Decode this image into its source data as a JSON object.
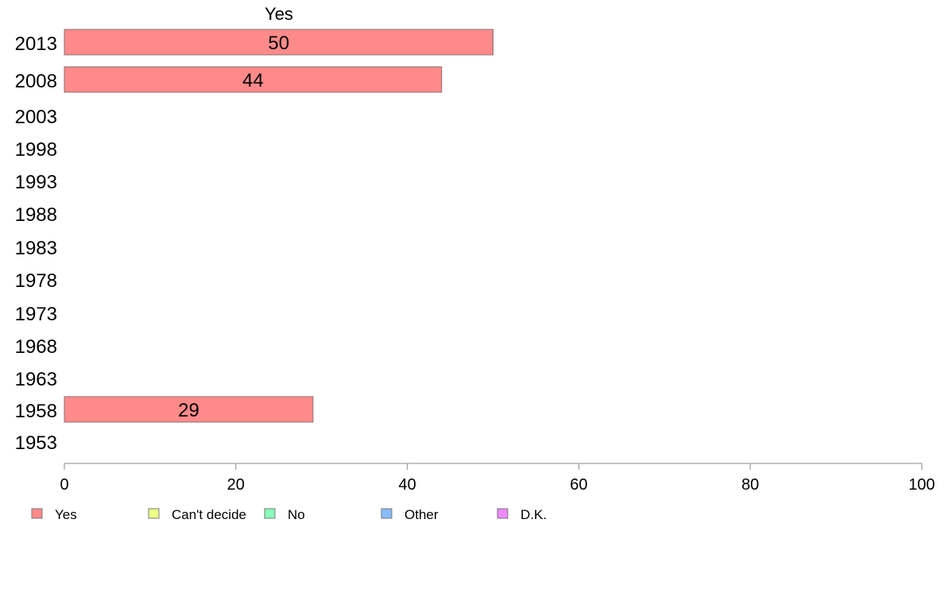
{
  "chart_data": {
    "type": "bar",
    "orientation": "horizontal",
    "series_title": "Yes",
    "categories": [
      "2013",
      "2008",
      "2003",
      "1998",
      "1993",
      "1988",
      "1983",
      "1978",
      "1973",
      "1968",
      "1963",
      "1958",
      "1953"
    ],
    "series": [
      {
        "name": "Yes",
        "color": "#ff8a8a",
        "values": [
          50,
          44,
          null,
          null,
          null,
          null,
          null,
          null,
          null,
          null,
          null,
          29,
          null
        ]
      }
    ],
    "xlim": [
      0,
      100
    ],
    "x_ticks": [
      "0",
      "20",
      "40",
      "60",
      "80",
      "100"
    ],
    "xlabel": "",
    "ylabel": "",
    "grid": false,
    "legend_position": "bottom-left",
    "legend": [
      {
        "label": "Yes",
        "color": "#ff8a8a"
      },
      {
        "label": "Can't decide",
        "color": "#eeff88"
      },
      {
        "label": "No",
        "color": "#88ffbb"
      },
      {
        "label": "Other",
        "color": "#88bbff"
      },
      {
        "label": "D.K.",
        "color": "#ee88ff"
      }
    ]
  }
}
